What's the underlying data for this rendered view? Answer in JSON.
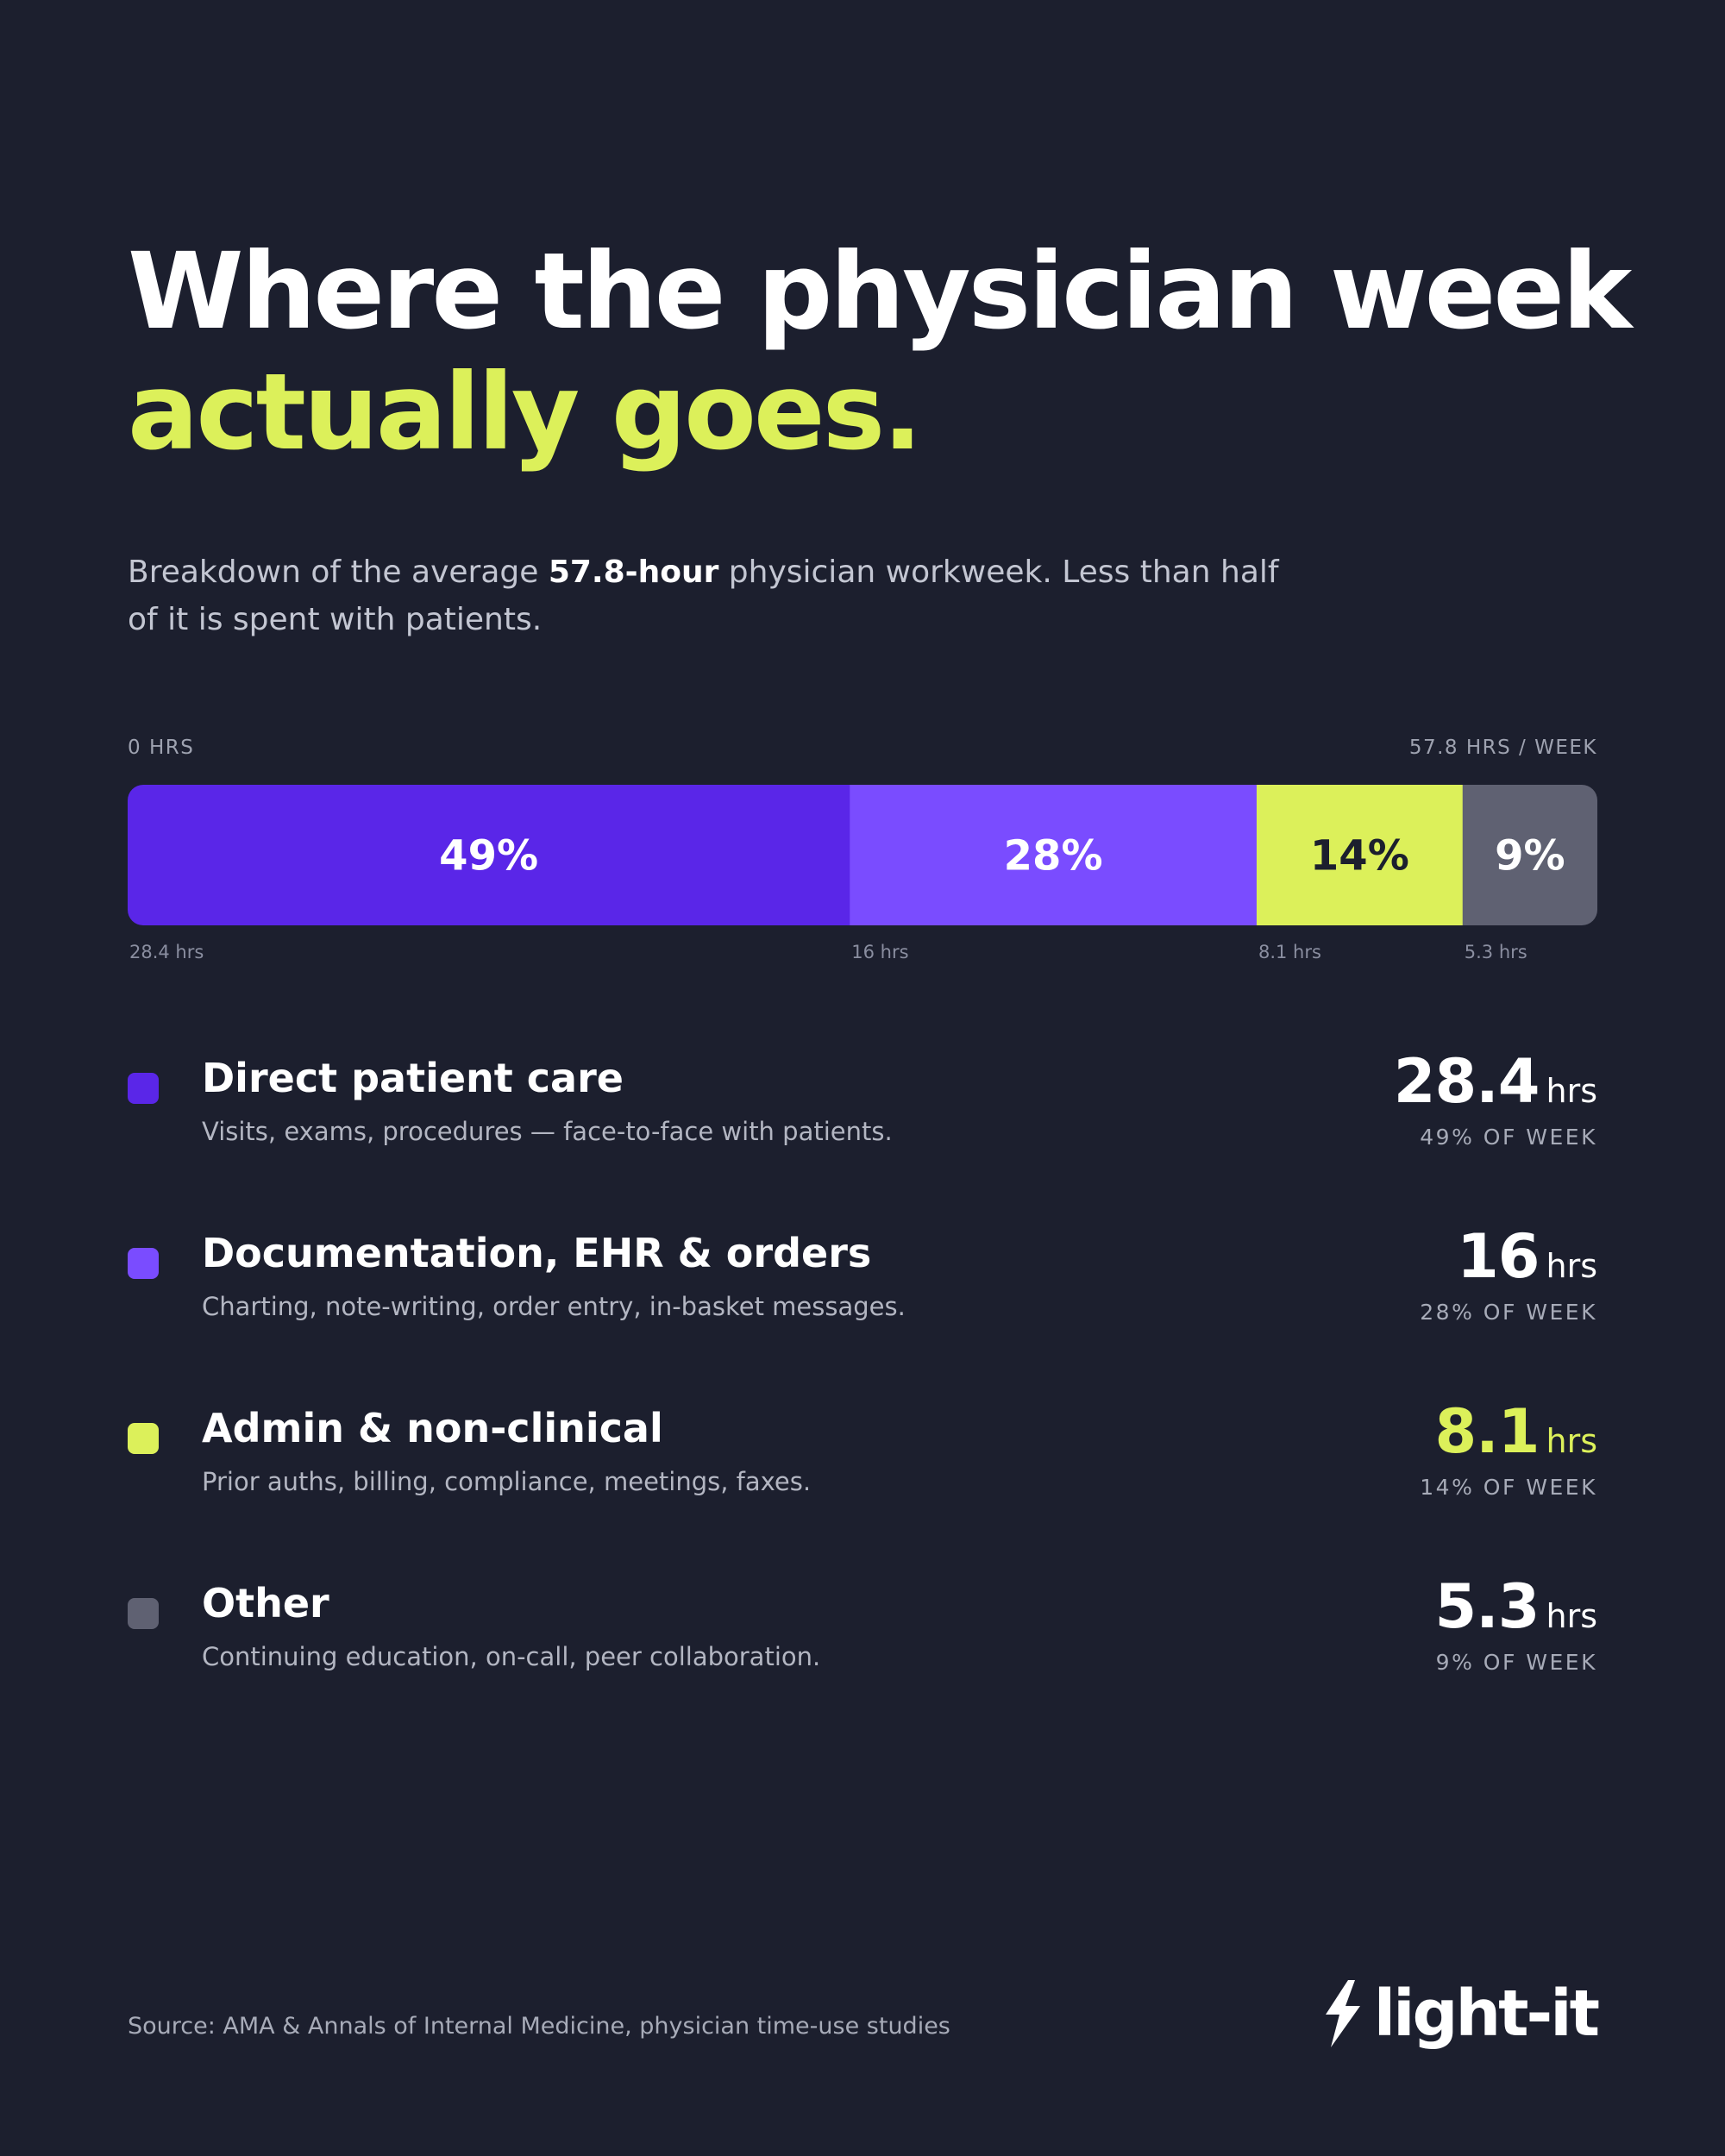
{
  "header": {
    "title_line1": "Where the physician week",
    "title_line2": "actually goes."
  },
  "subtitle": {
    "before": "Breakdown of the average ",
    "bold": "57.8-hour",
    "after": " physician workweek. Less than half of it is spent with patients."
  },
  "axis": {
    "left_label": "0 HRS",
    "right_label": "57.8 HRS / WEEK"
  },
  "chart_data": {
    "type": "bar",
    "orientation": "horizontal-stacked",
    "total_hours": 57.8,
    "categories": [
      "Direct patient care",
      "Documentation, EHR & orders",
      "Admin & non-clinical",
      "Other"
    ],
    "values": [
      28.4,
      16,
      8.1,
      5.3
    ],
    "percent_labels": [
      "49%",
      "28%",
      "14%",
      "9%"
    ],
    "hour_labels": [
      "28.4 hrs",
      "16 hrs",
      "8.1 hrs",
      "5.3 hrs"
    ],
    "colors": [
      "#5a26e8",
      "#7a4cff",
      "#dcf05a",
      "#5f6172"
    ],
    "label_colors": [
      "#ffffff",
      "#ffffff",
      "#1c1f2e",
      "#ffffff"
    ]
  },
  "legend": {
    "items": [
      {
        "name": "Direct patient care",
        "description": "Visits, exams, procedures — face-to-face with patients.",
        "value": "28.4",
        "unit": "hrs",
        "pct_label": "49% OF WEEK",
        "color": "#5a26e8",
        "value_color": "#ffffff"
      },
      {
        "name": "Documentation, EHR & orders",
        "description": "Charting, note-writing, order entry, in-basket messages.",
        "value": "16",
        "unit": "hrs",
        "pct_label": "28% OF WEEK",
        "color": "#7a4cff",
        "value_color": "#ffffff"
      },
      {
        "name": "Admin & non-clinical",
        "description": "Prior auths, billing, compliance, meetings, faxes.",
        "value": "8.1",
        "unit": "hrs",
        "pct_label": "14% OF WEEK",
        "color": "#dcf05a",
        "value_color": "#dcf05a"
      },
      {
        "name": "Other",
        "description": "Continuing education, on-call, peer collaboration.",
        "value": "5.3",
        "unit": "hrs",
        "pct_label": "9% OF WEEK",
        "color": "#5f6172",
        "value_color": "#ffffff"
      }
    ]
  },
  "footer": {
    "source": "Source: AMA & Annals of Internal Medicine, physician time-use studies",
    "logo_text": "light-it",
    "logo_icon": "bolt-icon"
  }
}
